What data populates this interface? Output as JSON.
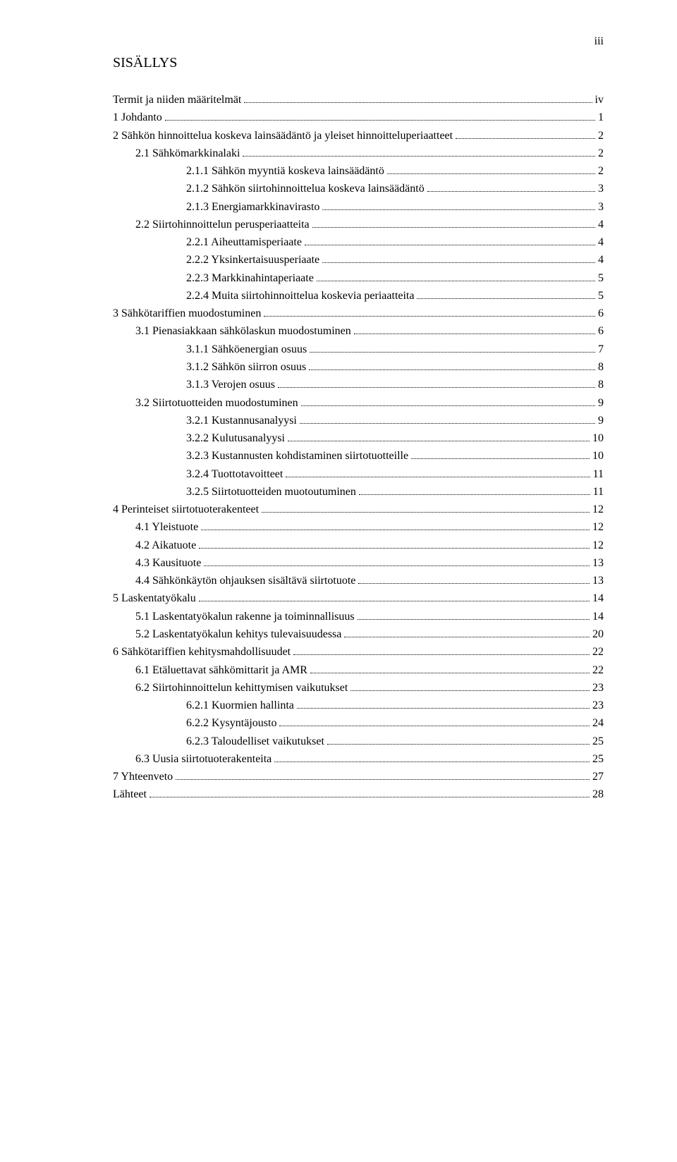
{
  "page_number_roman": "iii",
  "heading": "SISÄLLYS",
  "toc": [
    {
      "level": 1,
      "label": "Termit ja niiden määritelmät",
      "page": "iv"
    },
    {
      "level": 1,
      "label": "1    Johdanto",
      "page": "1"
    },
    {
      "level": 1,
      "label": "2    Sähkön hinnoittelua koskeva lainsäädäntö ja yleiset hinnoitteluperiaatteet",
      "page": "2"
    },
    {
      "level": 2,
      "label": "2.1  Sähkömarkkinalaki",
      "page": "2"
    },
    {
      "level": 3,
      "label": "2.1.1    Sähkön myyntiä koskeva lainsäädäntö",
      "page": "2"
    },
    {
      "level": 3,
      "label": "2.1.2    Sähkön siirtohinnoittelua koskeva lainsäädäntö",
      "page": "3"
    },
    {
      "level": 3,
      "label": "2.1.3    Energiamarkkinavirasto",
      "page": "3"
    },
    {
      "level": 2,
      "label": "2.2  Siirtohinnoittelun perusperiaatteita",
      "page": "4"
    },
    {
      "level": 3,
      "label": "2.2.1    Aiheuttamisperiaate",
      "page": "4"
    },
    {
      "level": 3,
      "label": "2.2.2    Yksinkertaisuusperiaate",
      "page": "4"
    },
    {
      "level": 3,
      "label": "2.2.3    Markkinahintaperiaate",
      "page": "5"
    },
    {
      "level": 3,
      "label": "2.2.4    Muita siirtohinnoittelua koskevia periaatteita",
      "page": "5"
    },
    {
      "level": 1,
      "label": "3    Sähkötariffien muodostuminen",
      "page": "6"
    },
    {
      "level": 2,
      "label": "3.1  Pienasiakkaan sähkölaskun muodostuminen",
      "page": "6"
    },
    {
      "level": 3,
      "label": "3.1.1    Sähköenergian osuus",
      "page": "7"
    },
    {
      "level": 3,
      "label": "3.1.2    Sähkön siirron osuus",
      "page": "8"
    },
    {
      "level": 3,
      "label": "3.1.3    Verojen osuus",
      "page": "8"
    },
    {
      "level": 2,
      "label": "3.2  Siirtotuotteiden muodostuminen",
      "page": "9"
    },
    {
      "level": 3,
      "label": "3.2.1    Kustannusanalyysi",
      "page": "9"
    },
    {
      "level": 3,
      "label": "3.2.2    Kulutusanalyysi",
      "page": "10"
    },
    {
      "level": 3,
      "label": "3.2.3    Kustannusten kohdistaminen siirtotuotteille",
      "page": "10"
    },
    {
      "level": 3,
      "label": "3.2.4    Tuottotavoitteet",
      "page": "11"
    },
    {
      "level": 3,
      "label": "3.2.5    Siirtotuotteiden muotoutuminen",
      "page": "11"
    },
    {
      "level": 1,
      "label": "4    Perinteiset siirtotuoterakenteet",
      "page": "12"
    },
    {
      "level": 2,
      "label": "4.1  Yleistuote",
      "page": "12"
    },
    {
      "level": 2,
      "label": "4.2  Aikatuote",
      "page": "12"
    },
    {
      "level": 2,
      "label": "4.3  Kausituote",
      "page": "13"
    },
    {
      "level": 2,
      "label": "4.4  Sähkönkäytön ohjauksen sisältävä siirtotuote",
      "page": "13"
    },
    {
      "level": 1,
      "label": "5    Laskentatyökalu",
      "page": "14"
    },
    {
      "level": 2,
      "label": "5.1  Laskentatyökalun rakenne ja toiminnallisuus",
      "page": "14"
    },
    {
      "level": 2,
      "label": "5.2  Laskentatyökalun kehitys tulevaisuudessa",
      "page": "20"
    },
    {
      "level": 1,
      "label": "6    Sähkötariffien kehitysmahdollisuudet",
      "page": "22"
    },
    {
      "level": 2,
      "label": "6.1  Etäluettavat sähkömittarit ja AMR",
      "page": "22"
    },
    {
      "level": 2,
      "label": "6.2  Siirtohinnoittelun kehittymisen vaikutukset",
      "page": "23"
    },
    {
      "level": 3,
      "label": "6.2.1    Kuormien hallinta",
      "page": "23"
    },
    {
      "level": 3,
      "label": "6.2.2    Kysyntäjousto",
      "page": "24"
    },
    {
      "level": 3,
      "label": "6.2.3    Taloudelliset vaikutukset",
      "page": "25"
    },
    {
      "level": 2,
      "label": "6.3  Uusia siirtotuoterakenteita",
      "page": "25"
    },
    {
      "level": 1,
      "label": "7    Yhteenveto",
      "page": "27"
    },
    {
      "level": 1,
      "label": "Lähteet",
      "page": "28"
    }
  ]
}
